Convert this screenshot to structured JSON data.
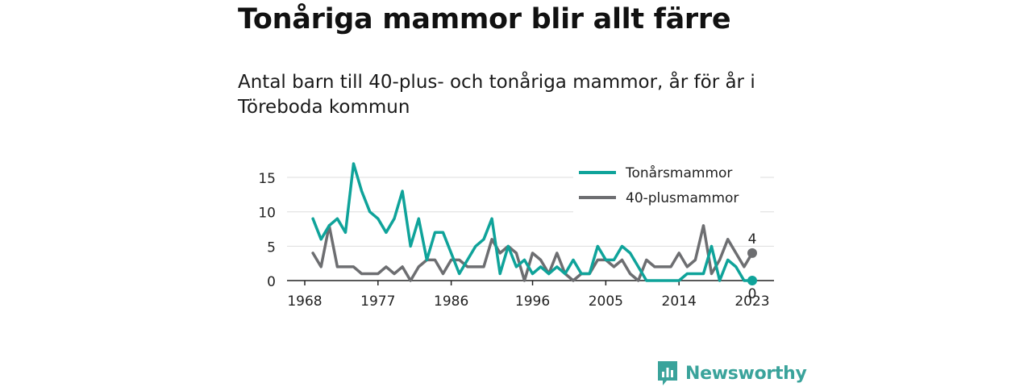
{
  "title": "Tonåriga mammor blir allt färre",
  "subtitle": "Antal barn till 40-plus- och tonåriga mammor, år för år i Töreboda kommun",
  "logo": {
    "text": "Newsworthy",
    "icon": "newsworthy-logo-icon",
    "color": "#3aa39b"
  },
  "chart_data": {
    "type": "line",
    "title": "",
    "xlabel": "",
    "ylabel": "",
    "x_ticks": [
      "1968",
      "1977",
      "1986",
      "1996",
      "2005",
      "2014",
      "2023"
    ],
    "y_ticks": [
      "0",
      "5",
      "10",
      "15"
    ],
    "ylim": [
      0,
      17.5
    ],
    "xlim": [
      1968,
      2023
    ],
    "grid": "horizontal",
    "legend_position": "top-right",
    "x": [
      1969,
      1970,
      1971,
      1972,
      1973,
      1974,
      1975,
      1976,
      1977,
      1978,
      1979,
      1980,
      1981,
      1982,
      1983,
      1984,
      1985,
      1986,
      1987,
      1988,
      1989,
      1990,
      1991,
      1992,
      1993,
      1994,
      1995,
      1996,
      1997,
      1998,
      1999,
      2000,
      2001,
      2002,
      2003,
      2004,
      2005,
      2006,
      2007,
      2008,
      2009,
      2010,
      2011,
      2012,
      2013,
      2014,
      2015,
      2016,
      2017,
      2018,
      2019,
      2020,
      2021,
      2022,
      2023
    ],
    "series": [
      {
        "name": "Tonårsmammor",
        "color": "#0fa39a",
        "end_label": "0",
        "values": [
          9,
          6,
          8,
          9,
          7,
          17,
          13,
          10,
          9,
          7,
          9,
          13,
          5,
          9,
          3,
          7,
          7,
          4,
          1,
          3,
          5,
          6,
          9,
          1,
          5,
          2,
          3,
          1,
          2,
          1,
          2,
          1,
          3,
          1,
          1,
          5,
          3,
          3,
          5,
          4,
          2,
          0,
          0,
          0,
          0,
          0,
          1,
          1,
          1,
          5,
          0,
          3,
          2,
          0,
          0
        ]
      },
      {
        "name": "40-plusmammor",
        "color": "#6d6e71",
        "end_label": "4",
        "values": [
          4,
          2,
          8,
          2,
          2,
          2,
          1,
          1,
          1,
          2,
          1,
          2,
          0,
          2,
          3,
          3,
          1,
          3,
          3,
          2,
          2,
          2,
          6,
          4,
          5,
          4,
          0,
          4,
          3,
          1,
          4,
          1,
          0,
          1,
          1,
          3,
          3,
          2,
          3,
          1,
          0,
          3,
          2,
          2,
          2,
          4,
          2,
          3,
          8,
          1,
          3,
          6,
          4,
          2,
          4
        ]
      }
    ]
  }
}
